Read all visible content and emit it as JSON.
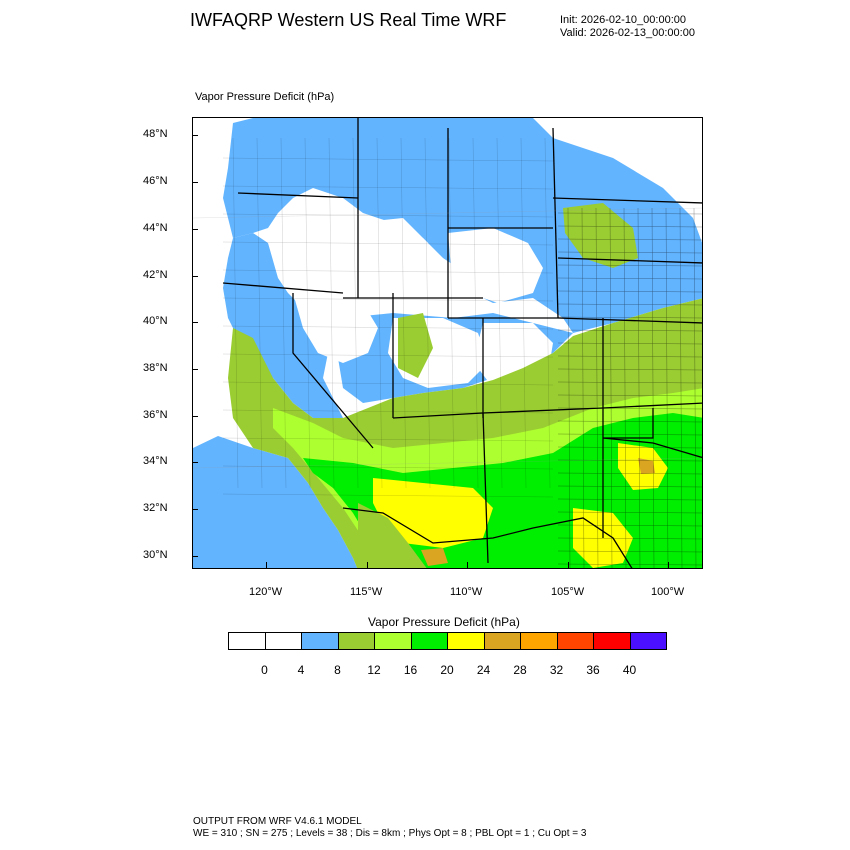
{
  "header": {
    "title": "IWFAQRP Western US Real Time WRF",
    "init": "Init: 2026-02-10_00:00:00",
    "valid": "Valid: 2026-02-13_00:00:00"
  },
  "map": {
    "field_label": "Vapor Pressure Deficit   (hPa)",
    "lat_labels": [
      "48°N",
      "46°N",
      "44°N",
      "42°N",
      "40°N",
      "38°N",
      "36°N",
      "34°N",
      "32°N",
      "30°N"
    ],
    "lon_labels": [
      "120°W",
      "115°W",
      "110°W",
      "105°W",
      "100°W"
    ],
    "colors": {
      "white": "#ffffff",
      "blue": "#62b4ff",
      "olive": "#9acd32",
      "lime": "#adff2f",
      "green": "#00ee00",
      "yellow": "#ffff00",
      "gold": "#daa520",
      "ocean": "#62b4ff"
    }
  },
  "colorbar": {
    "title": "Vapor Pressure Deficit  (hPa)",
    "colors": [
      "#ffffff",
      "#ffffff",
      "#62b4ff",
      "#9acd32",
      "#adff2f",
      "#00ee00",
      "#ffff00",
      "#daa520",
      "#ffa500",
      "#ff4500",
      "#ff0000",
      "#4b10ff"
    ],
    "labels": [
      "0",
      "4",
      "8",
      "12",
      "16",
      "20",
      "24",
      "28",
      "32",
      "36",
      "40"
    ]
  },
  "footer": {
    "line1": "OUTPUT FROM WRF V4.6.1 MODEL",
    "line2": "WE = 310 ; SN = 275 ; Levels = 38 ; Dis = 8km ; Phys Opt = 8 ; PBL Opt = 1 ; Cu Opt = 3"
  }
}
